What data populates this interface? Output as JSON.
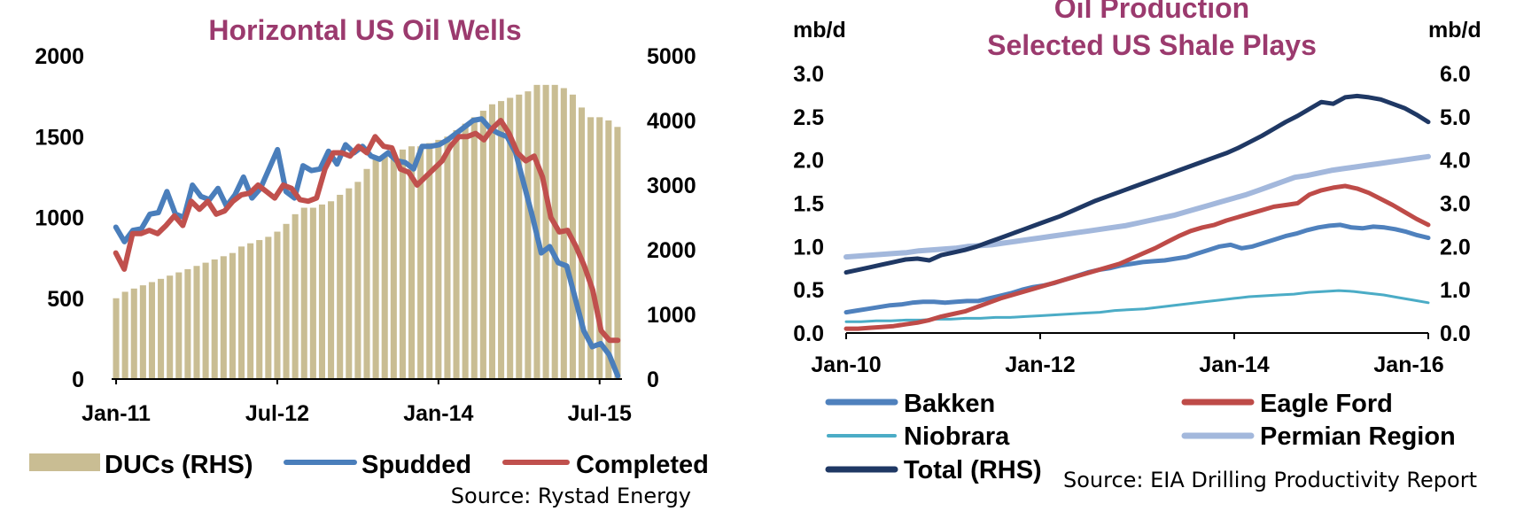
{
  "colors": {
    "duc_bar": "#c9bd93",
    "spudded": "#4a7ebb",
    "completed": "#c0504d",
    "bakken": "#4f81bd",
    "eagle_ford": "#be4b48",
    "niobrara": "#4bacc6",
    "permian": "#a3b8dc",
    "total": "#1f3864",
    "title": "#9b3a6e",
    "axis": "#000000",
    "grid": "#d9d9d9"
  },
  "chart_data": [
    {
      "type": "bar",
      "title": "Horizontal US Oil Wells",
      "x_start": "Jan-11",
      "x_ticks": [
        "Jan-11",
        "Jul-12",
        "Jan-14",
        "Jul-15"
      ],
      "x_tick_month_index": [
        0,
        18,
        36,
        54
      ],
      "months": 57,
      "y_left": {
        "ticks": [
          "2000",
          "1500",
          "1000",
          "500",
          "0"
        ],
        "range": [
          0,
          2000
        ]
      },
      "y_right": {
        "ticks": [
          "5000",
          "4000",
          "3000",
          "2000",
          "1000",
          "0"
        ],
        "range": [
          0,
          5000
        ]
      },
      "legend": [
        "DUCs (RHS)",
        "Spudded",
        "Completed"
      ],
      "source": "Source: Rystad Energy",
      "series": [
        {
          "name": "DUCs (RHS)",
          "axis": "right",
          "kind": "bar",
          "values": [
            1250,
            1350,
            1400,
            1450,
            1500,
            1550,
            1600,
            1650,
            1700,
            1750,
            1800,
            1850,
            1900,
            1950,
            2050,
            2100,
            2150,
            2200,
            2280,
            2400,
            2550,
            2650,
            2650,
            2700,
            2750,
            2850,
            2950,
            3050,
            3250,
            3400,
            3450,
            3500,
            3550,
            3600,
            3600,
            3650,
            3700,
            3750,
            3850,
            3950,
            4050,
            4150,
            4250,
            4300,
            4350,
            4400,
            4450,
            4550,
            4550,
            4550,
            4500,
            4400,
            4200,
            4050,
            4050,
            4000,
            3900
          ]
        },
        {
          "name": "Spudded",
          "axis": "left",
          "kind": "line",
          "values": [
            940,
            850,
            920,
            930,
            1020,
            1030,
            1160,
            1020,
            1000,
            1200,
            1130,
            1110,
            1180,
            1070,
            1140,
            1250,
            1120,
            1180,
            1300,
            1420,
            1160,
            1120,
            1320,
            1290,
            1300,
            1410,
            1330,
            1450,
            1400,
            1440,
            1380,
            1360,
            1400,
            1350,
            1340,
            1300,
            1440,
            1440,
            1450,
            1480,
            1520,
            1560,
            1600,
            1610,
            1550,
            1520,
            1500,
            1400,
            1200,
            1000,
            780,
            820,
            720,
            700,
            500,
            300,
            200,
            220,
            150,
            20
          ]
        },
        {
          "name": "Completed",
          "axis": "left",
          "kind": "line",
          "values": [
            780,
            680,
            900,
            900,
            920,
            900,
            950,
            1010,
            950,
            1100,
            1050,
            1100,
            1020,
            1040,
            1100,
            1140,
            1150,
            1200,
            1160,
            1120,
            1200,
            1180,
            1110,
            1100,
            1120,
            1300,
            1400,
            1400,
            1380,
            1440,
            1400,
            1500,
            1440,
            1430,
            1300,
            1280,
            1200,
            1250,
            1300,
            1350,
            1440,
            1500,
            1500,
            1520,
            1480,
            1550,
            1600,
            1520,
            1400,
            1350,
            1380,
            1250,
            1000,
            910,
            920,
            820,
            700,
            550,
            300,
            240,
            240
          ]
        }
      ]
    },
    {
      "type": "line",
      "title_lines": [
        "Oil Production",
        "Selected US Shale Plays"
      ],
      "x_ticks": [
        "Jan-10",
        "Jan-12",
        "Jan-14",
        "Jan-16"
      ],
      "x_tick_month_index": [
        0,
        24,
        48,
        72
      ],
      "months": 73,
      "left_unit": "mb/d",
      "right_unit": "mb/d",
      "y_left": {
        "ticks": [
          "3.0",
          "2.5",
          "2.0",
          "1.5",
          "1.0",
          "0.5",
          "0.0"
        ],
        "range": [
          0,
          3
        ]
      },
      "y_right": {
        "ticks": [
          "6.0",
          "5.0",
          "4.0",
          "3.0",
          "2.0",
          "1.0",
          "0.0"
        ],
        "range": [
          0,
          6
        ]
      },
      "legend": [
        "Bakken",
        "Eagle Ford",
        "Niobrara",
        "Permian Region",
        "Total (RHS)"
      ],
      "source": "Source: EIA Drilling Productivity Report",
      "series": [
        {
          "name": "Bakken",
          "axis": "left",
          "values": [
            0.24,
            0.26,
            0.28,
            0.3,
            0.32,
            0.33,
            0.35,
            0.36,
            0.36,
            0.35,
            0.36,
            0.37,
            0.37,
            0.4,
            0.43,
            0.46,
            0.5,
            0.53,
            0.55,
            0.58,
            0.62,
            0.66,
            0.7,
            0.73,
            0.75,
            0.78,
            0.8,
            0.82,
            0.83,
            0.84,
            0.86,
            0.88,
            0.92,
            0.96,
            1.0,
            1.02,
            0.98,
            1.0,
            1.04,
            1.08,
            1.12,
            1.15,
            1.19,
            1.22,
            1.24,
            1.25,
            1.22,
            1.21,
            1.23,
            1.22,
            1.2,
            1.17,
            1.13,
            1.1
          ]
        },
        {
          "name": "Eagle Ford",
          "axis": "left",
          "values": [
            0.05,
            0.05,
            0.06,
            0.07,
            0.08,
            0.1,
            0.12,
            0.15,
            0.19,
            0.22,
            0.25,
            0.3,
            0.35,
            0.4,
            0.44,
            0.48,
            0.52,
            0.56,
            0.6,
            0.64,
            0.68,
            0.72,
            0.76,
            0.8,
            0.86,
            0.92,
            0.98,
            1.05,
            1.12,
            1.18,
            1.22,
            1.25,
            1.3,
            1.34,
            1.38,
            1.42,
            1.46,
            1.48,
            1.5,
            1.6,
            1.65,
            1.68,
            1.7,
            1.67,
            1.62,
            1.55,
            1.48,
            1.4,
            1.32,
            1.25
          ]
        },
        {
          "name": "Niobrara",
          "axis": "left",
          "values": [
            0.13,
            0.13,
            0.14,
            0.14,
            0.15,
            0.15,
            0.16,
            0.16,
            0.17,
            0.17,
            0.18,
            0.18,
            0.19,
            0.2,
            0.21,
            0.22,
            0.23,
            0.24,
            0.26,
            0.27,
            0.28,
            0.3,
            0.32,
            0.34,
            0.36,
            0.38,
            0.4,
            0.42,
            0.43,
            0.44,
            0.45,
            0.47,
            0.48,
            0.49,
            0.48,
            0.46,
            0.44,
            0.41,
            0.38,
            0.35
          ]
        },
        {
          "name": "Permian Region",
          "axis": "left",
          "values": [
            0.88,
            0.89,
            0.9,
            0.91,
            0.92,
            0.93,
            0.95,
            0.96,
            0.97,
            0.98,
            1.0,
            1.01,
            1.02,
            1.04,
            1.06,
            1.08,
            1.1,
            1.12,
            1.14,
            1.16,
            1.18,
            1.2,
            1.22,
            1.24,
            1.27,
            1.3,
            1.33,
            1.36,
            1.4,
            1.44,
            1.48,
            1.52,
            1.56,
            1.6,
            1.65,
            1.7,
            1.75,
            1.8,
            1.82,
            1.85,
            1.88,
            1.9,
            1.92,
            1.94,
            1.96,
            1.98,
            2.0,
            2.02,
            2.04
          ]
        },
        {
          "name": "Total (RHS)",
          "axis": "right",
          "values": [
            1.4,
            1.46,
            1.52,
            1.58,
            1.64,
            1.7,
            1.72,
            1.68,
            1.8,
            1.86,
            1.92,
            2.0,
            2.1,
            2.2,
            2.3,
            2.4,
            2.5,
            2.6,
            2.7,
            2.82,
            2.94,
            3.06,
            3.16,
            3.26,
            3.36,
            3.46,
            3.56,
            3.66,
            3.76,
            3.86,
            3.96,
            4.06,
            4.16,
            4.28,
            4.42,
            4.56,
            4.72,
            4.88,
            5.02,
            5.18,
            5.34,
            5.3,
            5.45,
            5.48,
            5.45,
            5.4,
            5.3,
            5.2,
            5.05,
            4.88
          ]
        }
      ]
    }
  ]
}
